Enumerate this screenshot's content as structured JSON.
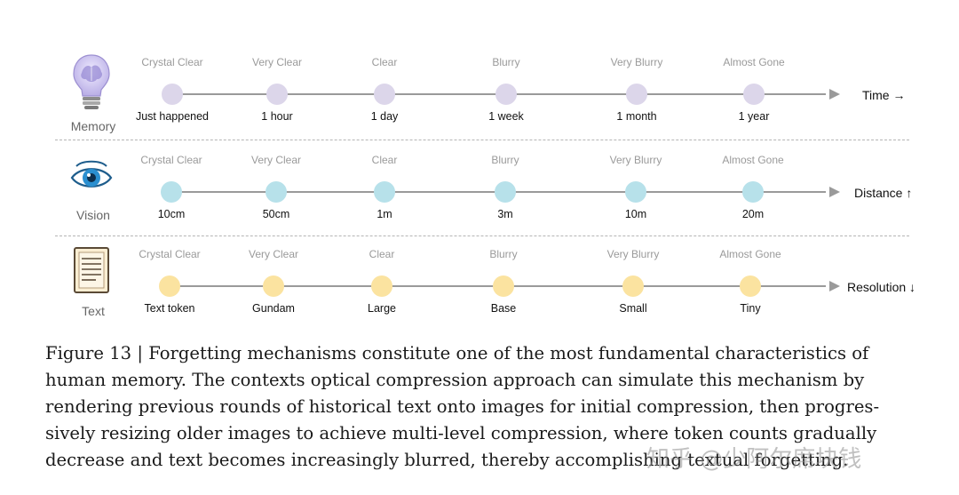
{
  "rows": [
    {
      "label": "Memory",
      "axis_label": "Time →",
      "dot_color": "#dcd6ea",
      "clarity": [
        "Crystal Clear",
        "Very Clear",
        "Clear",
        "Blurry",
        "Very Blurry",
        "Almost Gone"
      ],
      "ticks": [
        "Just happened",
        "1 hour",
        "1 day",
        "1 week",
        "1 month",
        "1 year"
      ]
    },
    {
      "label": "Vision",
      "axis_label": "Distance ↑",
      "dot_color": "#b7e1ea",
      "clarity": [
        "Crystal Clear",
        "Very Clear",
        "Clear",
        "Blurry",
        "Very Blurry",
        "Almost Gone"
      ],
      "ticks": [
        "10cm",
        "50cm",
        "1m",
        "3m",
        "10m",
        "20m"
      ]
    },
    {
      "label": "Text",
      "axis_label": "Resolution ↓",
      "dot_color": "#fbe3a0",
      "clarity": [
        "Crystal Clear",
        "Very Clear",
        "Clear",
        "Blurry",
        "Very Blurry",
        "Almost Gone"
      ],
      "ticks": [
        "Text token",
        "Gundam",
        "Large",
        "Base",
        "Small",
        "Tiny"
      ]
    }
  ],
  "icons": [
    "lightbulb-brain-icon",
    "eye-icon",
    "document-icon"
  ],
  "caption": [
    "Figure 13 | Forgetting mechanisms constitute one of the most fundamental characteristics of",
    "human memory. The contexts optical compression approach can simulate this mechanism by",
    "rendering previous rounds of historical text onto images for initial compression, then progres-",
    "sively resizing older images to achieve multi-level compression, where token counts gradually",
    "decrease and text becomes increasingly blurred, thereby accomplishing textual forgetting."
  ],
  "watermark": "知乎 @少阿尔席块钱"
}
